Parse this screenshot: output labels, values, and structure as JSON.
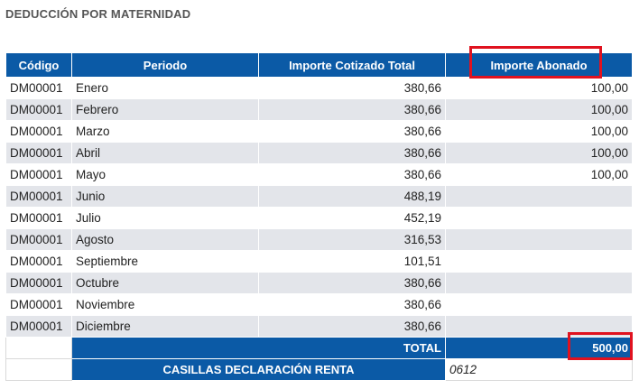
{
  "page": {
    "title": "DEDUCCIÓN POR MATERNIDAD"
  },
  "table": {
    "headers": [
      "Código",
      "Periodo",
      "Importe Cotizado Total",
      "Importe Abonado"
    ],
    "rows": [
      {
        "code": "DM00001",
        "period": "Enero",
        "cotizado": "380,66",
        "abonado": "100,00"
      },
      {
        "code": "DM00001",
        "period": "Febrero",
        "cotizado": "380,66",
        "abonado": "100,00"
      },
      {
        "code": "DM00001",
        "period": "Marzo",
        "cotizado": "380,66",
        "abonado": "100,00"
      },
      {
        "code": "DM00001",
        "period": "Abril",
        "cotizado": "380,66",
        "abonado": "100,00"
      },
      {
        "code": "DM00001",
        "period": "Mayo",
        "cotizado": "380,66",
        "abonado": "100,00"
      },
      {
        "code": "DM00001",
        "period": "Junio",
        "cotizado": "488,19",
        "abonado": ""
      },
      {
        "code": "DM00001",
        "period": "Julio",
        "cotizado": "452,19",
        "abonado": ""
      },
      {
        "code": "DM00001",
        "period": "Agosto",
        "cotizado": "316,53",
        "abonado": ""
      },
      {
        "code": "DM00001",
        "period": "Septiembre",
        "cotizado": "101,51",
        "abonado": ""
      },
      {
        "code": "DM00001",
        "period": "Octubre",
        "cotizado": "380,66",
        "abonado": ""
      },
      {
        "code": "DM00001",
        "period": "Noviembre",
        "cotizado": "380,66",
        "abonado": ""
      },
      {
        "code": "DM00001",
        "period": "Diciembre",
        "cotizado": "380,66",
        "abonado": ""
      }
    ],
    "total": {
      "label": "TOTAL",
      "value": "500,00"
    },
    "casillas": {
      "label": "CASILLAS DECLARACIÓN RENTA",
      "value": "0612"
    }
  },
  "colors": {
    "header_bg": "#0b5aa6",
    "row_alt_bg": "#e3e5ea",
    "highlight": "#e0121f"
  }
}
